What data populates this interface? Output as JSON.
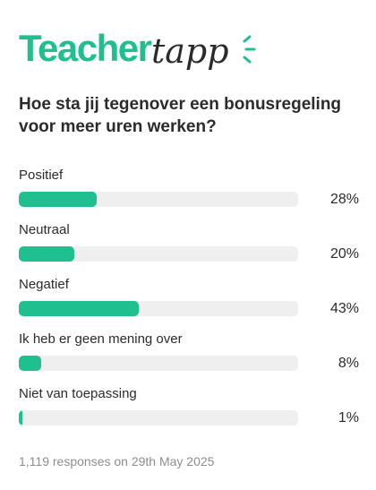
{
  "brand": {
    "name_part1": "Teacher",
    "name_part2": "tapp",
    "color": "#1fbf8f"
  },
  "question": "Hoe sta jij tegenover een bonusregeling voor meer uren werken?",
  "chart_data": {
    "type": "bar",
    "orientation": "horizontal",
    "title": "Hoe sta jij tegenover een bonusregeling voor meer uren werken?",
    "categories": [
      "Positief",
      "Neutraal",
      "Negatief",
      "Ik heb er geen mening over",
      "Niet van toepassing"
    ],
    "values": [
      28,
      20,
      43,
      8,
      1
    ],
    "value_labels": [
      "28%",
      "20%",
      "43%",
      "8%",
      "1%"
    ],
    "unit": "%",
    "xlim": [
      0,
      100
    ],
    "bar_color": "#1fbf8f",
    "track_color": "#efefef"
  },
  "footer": "1,119 responses on 29th May 2025"
}
